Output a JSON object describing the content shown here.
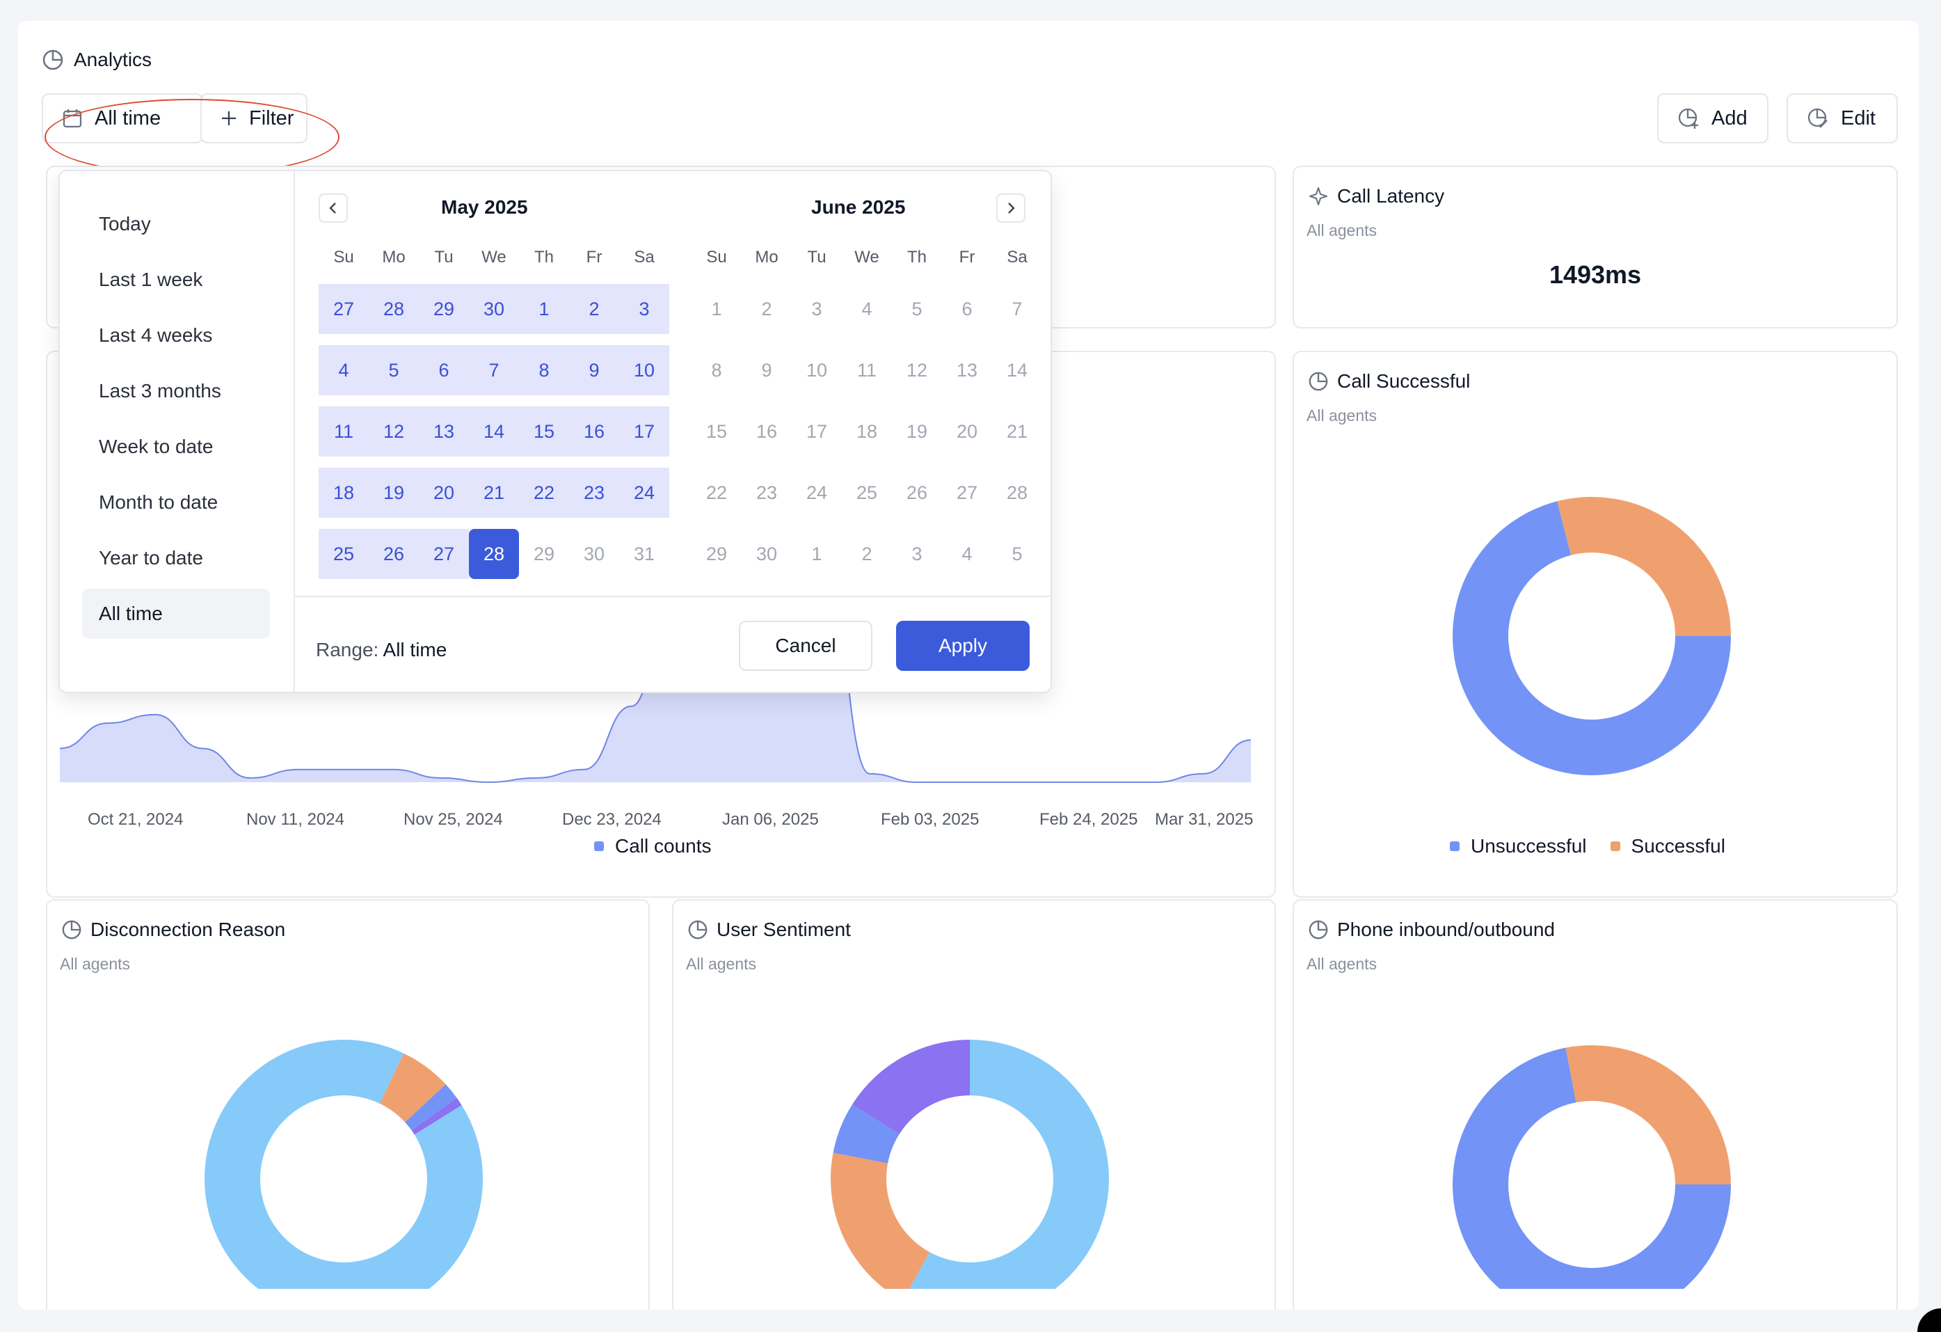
{
  "header": {
    "title": "Analytics",
    "date_button": "All time",
    "filter_button": "Filter",
    "add_button": "Add",
    "edit_button": "Edit"
  },
  "date_picker": {
    "presets": [
      "Today",
      "Last 1 week",
      "Last 4 weeks",
      "Last 3 months",
      "Week to date",
      "Month to date",
      "Year to date",
      "All time"
    ],
    "active_preset": "All time",
    "weekdays": [
      "Su",
      "Mo",
      "Tu",
      "We",
      "Th",
      "Fr",
      "Sa"
    ],
    "months": [
      {
        "title": "May 2025",
        "weeks": [
          [
            "27",
            "28",
            "29",
            "30",
            "1",
            "2",
            "3"
          ],
          [
            "4",
            "5",
            "6",
            "7",
            "8",
            "9",
            "10"
          ],
          [
            "11",
            "12",
            "13",
            "14",
            "15",
            "16",
            "17"
          ],
          [
            "18",
            "19",
            "20",
            "21",
            "22",
            "23",
            "24"
          ],
          [
            "25",
            "26",
            "27",
            "28",
            "29",
            "30",
            "31"
          ]
        ]
      },
      {
        "title": "June 2025",
        "weeks": [
          [
            "1",
            "2",
            "3",
            "4",
            "5",
            "6",
            "7"
          ],
          [
            "8",
            "9",
            "10",
            "11",
            "12",
            "13",
            "14"
          ],
          [
            "15",
            "16",
            "17",
            "18",
            "19",
            "20",
            "21"
          ],
          [
            "22",
            "23",
            "24",
            "25",
            "26",
            "27",
            "28"
          ],
          [
            "29",
            "30",
            "1",
            "2",
            "3",
            "4",
            "5"
          ]
        ]
      }
    ],
    "selected_day": "28",
    "range_label": "Range:",
    "range_value": "All time",
    "cancel_button": "Cancel",
    "apply_button": "Apply"
  },
  "cards": {
    "call_latency": {
      "title": "Call Latency",
      "subtitle": "All agents",
      "value": "1493ms"
    },
    "call_successful": {
      "title": "Call Successful",
      "subtitle": "All agents"
    },
    "disconnection_reason": {
      "title": "Disconnection Reason",
      "subtitle": "All agents"
    },
    "user_sentiment": {
      "title": "User Sentiment",
      "subtitle": "All agents"
    },
    "phone_inbound_outbound": {
      "title": "Phone inbound/outbound",
      "subtitle": "All agents"
    }
  },
  "colors": {
    "primary": "#3b5bdb",
    "range_bg": "#e2e5fb",
    "area_fill": "#d6dcfa",
    "area_line": "#6f86e8",
    "blue": "#7393f6",
    "orange": "#f0a06e",
    "light_blue": "#85caf9",
    "purple": "#8a72f0",
    "highlight": "#e0492f"
  },
  "chart_data": [
    {
      "type": "area",
      "x_tick_labels": [
        "Oct 21, 2024",
        "Nov 11, 2024",
        "Nov 25, 2024",
        "Dec 23, 2024",
        "Jan 06, 2025",
        "Feb 03, 2025",
        "Feb 24, 2025",
        "Mar 31, 2025"
      ],
      "legend": [
        "Call counts"
      ],
      "series": [
        {
          "name": "Call counts",
          "values": [
            8,
            14,
            16,
            8,
            1,
            3,
            3,
            3,
            1,
            0,
            1,
            3,
            18,
            55,
            55,
            55,
            55,
            2,
            0,
            0,
            0,
            0,
            0,
            0,
            2,
            10
          ]
        }
      ]
    },
    {
      "type": "pie",
      "title": "Call Successful",
      "labels": [
        "Unsuccessful",
        "Successful"
      ],
      "values": [
        71,
        29
      ],
      "colors": [
        "#7393f6",
        "#f0a06e"
      ]
    },
    {
      "type": "pie",
      "title": "Disconnection Reason",
      "values": [
        91,
        6,
        2,
        1
      ],
      "colors": [
        "#85caf9",
        "#f0a06e",
        "#7393f6",
        "#8a72f0"
      ]
    },
    {
      "type": "pie",
      "title": "User Sentiment",
      "values": [
        58,
        20,
        6,
        16
      ],
      "colors": [
        "#85caf9",
        "#f0a06e",
        "#7393f6",
        "#8a72f0"
      ]
    },
    {
      "type": "pie",
      "title": "Phone inbound/outbound",
      "values": [
        72,
        28
      ],
      "colors": [
        "#7393f6",
        "#f0a06e"
      ]
    }
  ]
}
